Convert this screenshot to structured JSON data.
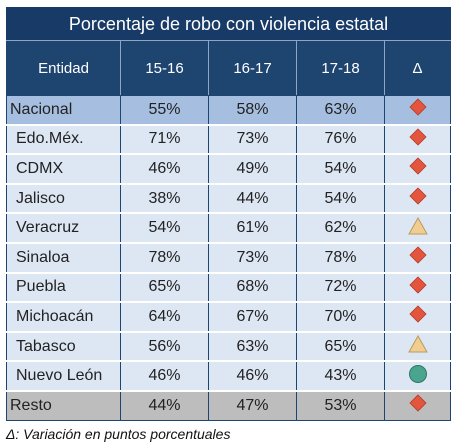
{
  "title": "Porcentaje de robo con violencia estatal",
  "headers": [
    "Entidad",
    "15-16",
    "16-17",
    "17-18",
    "Δ"
  ],
  "rows": [
    {
      "entidad": "Nacional",
      "v1": "55%",
      "v2": "58%",
      "v3": "63%",
      "delta": "red-diamond",
      "kind": "nacional"
    },
    {
      "entidad": "Edo.Méx.",
      "v1": "71%",
      "v2": "73%",
      "v3": "76%",
      "delta": "red-diamond",
      "kind": "estado"
    },
    {
      "entidad": "CDMX",
      "v1": "46%",
      "v2": "49%",
      "v3": "54%",
      "delta": "red-diamond",
      "kind": "estado"
    },
    {
      "entidad": "Jalisco",
      "v1": "38%",
      "v2": "44%",
      "v3": "54%",
      "delta": "red-diamond",
      "kind": "estado"
    },
    {
      "entidad": "Veracruz",
      "v1": "54%",
      "v2": "61%",
      "v3": "62%",
      "delta": "yellow-triangle",
      "kind": "estado"
    },
    {
      "entidad": "Sinaloa",
      "v1": "78%",
      "v2": "73%",
      "v3": "78%",
      "delta": "red-diamond",
      "kind": "estado"
    },
    {
      "entidad": "Puebla",
      "v1": "65%",
      "v2": "68%",
      "v3": "72%",
      "delta": "red-diamond",
      "kind": "estado"
    },
    {
      "entidad": "Michoacán",
      "v1": "64%",
      "v2": "67%",
      "v3": "70%",
      "delta": "red-diamond",
      "kind": "estado"
    },
    {
      "entidad": "Tabasco",
      "v1": "56%",
      "v2": "63%",
      "v3": "65%",
      "delta": "yellow-triangle",
      "kind": "estado"
    },
    {
      "entidad": "Nuevo León",
      "v1": "46%",
      "v2": "46%",
      "v3": "43%",
      "delta": "green-circle",
      "kind": "estado"
    },
    {
      "entidad": "Resto",
      "v1": "44%",
      "v2": "47%",
      "v3": "53%",
      "delta": "red-diamond",
      "kind": "resto"
    }
  ],
  "footnote": "Δ: Variación en puntos porcentuales",
  "colors": {
    "header_dark": "#183a66",
    "header": "#1e4470",
    "nacional_row": "#a6bfe0",
    "estado_row": "#dde7f4",
    "resto_row": "#bdbdbd",
    "indicator_red": "#e4553e",
    "indicator_yellow": "#f1cd90",
    "indicator_green": "#4aa58e"
  }
}
